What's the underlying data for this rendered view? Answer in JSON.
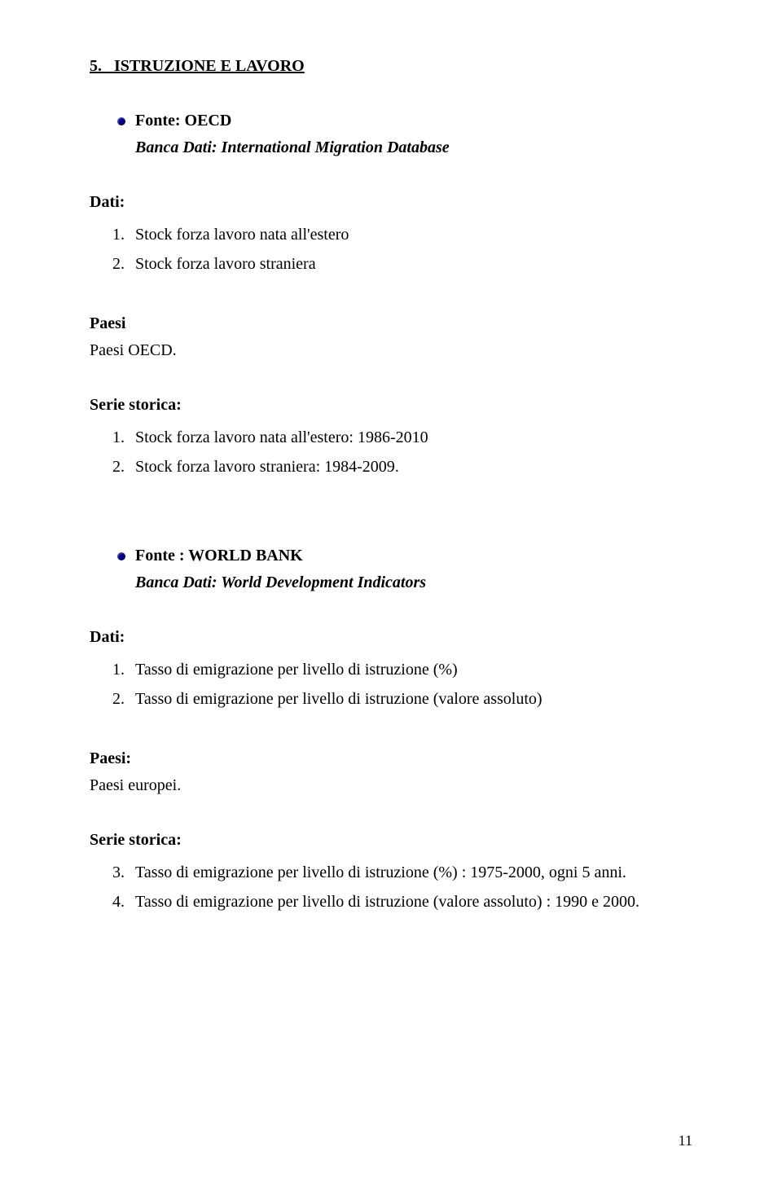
{
  "section": {
    "number": "5.",
    "title": "ISTRUZIONE E LAVORO"
  },
  "source1": {
    "fonte_label": "Fonte: OECD",
    "banca_dati": "Banca Dati: International Migration Database",
    "dati_heading": "Dati:",
    "dati_items": [
      {
        "num": "1.",
        "text": "Stock forza lavoro nata all'estero"
      },
      {
        "num": "2.",
        "text": "Stock forza lavoro straniera"
      }
    ],
    "paesi_heading": "Paesi",
    "paesi_text": "Paesi OECD.",
    "serie_heading": "Serie storica:",
    "serie_items": [
      {
        "num": "1.",
        "text": "Stock forza lavoro nata all'estero: 1986-2010"
      },
      {
        "num": "2.",
        "text": "Stock forza lavoro straniera: 1984-2009."
      }
    ]
  },
  "source2": {
    "fonte_label": "Fonte : WORLD BANK",
    "banca_dati": "Banca Dati: World Development Indicators",
    "dati_heading": "Dati:",
    "dati_items": [
      {
        "num": "1.",
        "text": "Tasso di emigrazione per livello di istruzione (%)"
      },
      {
        "num": "2.",
        "text": "Tasso di emigrazione per livello di istruzione (valore assoluto)"
      }
    ],
    "paesi_heading": "Paesi:",
    "paesi_text": "Paesi europei.",
    "serie_heading": "Serie storica:",
    "serie_items": [
      {
        "num": "3.",
        "text": "Tasso di emigrazione per livello di istruzione (%) : 1975-2000, ogni 5 anni."
      },
      {
        "num": "4.",
        "text": "Tasso di emigrazione per livello di istruzione (valore assoluto) : 1990 e 2000."
      }
    ]
  },
  "page_number": "11",
  "colors": {
    "bullet": "#000080",
    "text": "#000000",
    "background": "#ffffff"
  }
}
